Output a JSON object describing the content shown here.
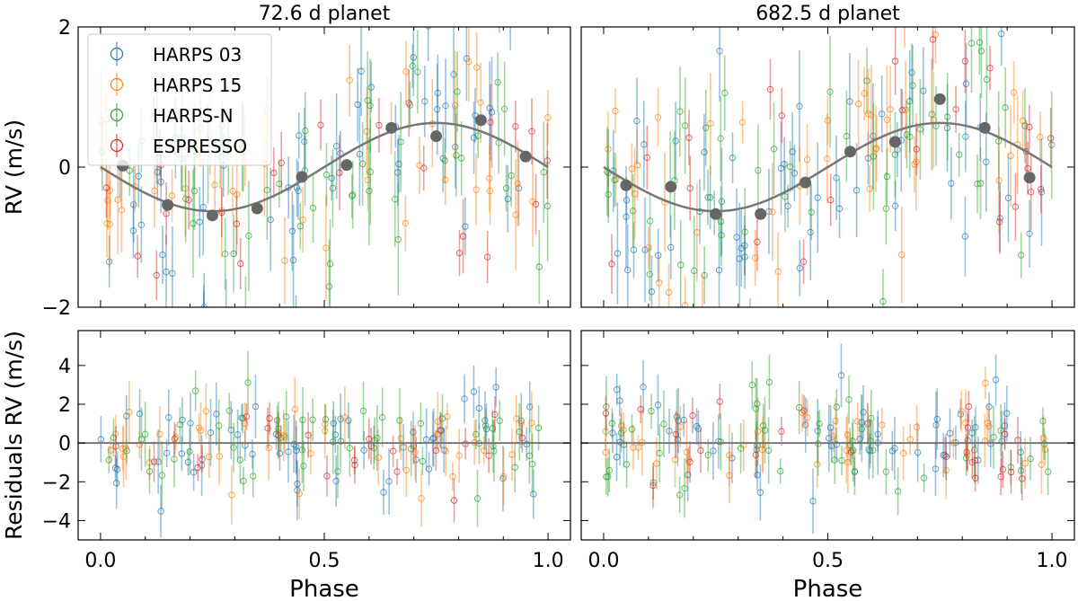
{
  "colors": {
    "HARPS 03": "#1f77b4",
    "HARPS 15": "#ff7f0e",
    "HARPS-N": "#2ca02c",
    "ESPRESSO": "#d62728",
    "binned": "#666666",
    "model": "#777777"
  },
  "legend": {
    "position": "top-left",
    "entries": [
      "HARPS 03",
      "HARPS 15",
      "HARPS-N",
      "ESPRESSO"
    ]
  },
  "chart_data": [
    {
      "type": "scatter",
      "title": "72.6 d planet",
      "xlabel": "",
      "ylabel": "RV (m/s)",
      "xlim": [
        -0.05,
        1.05
      ],
      "ylim": [
        -2,
        2
      ],
      "yticks": [
        -2,
        0,
        2
      ],
      "xticks": [
        0.0,
        0.5,
        1.0
      ],
      "grid": false,
      "model": {
        "type": "sine",
        "amplitude": 0.63,
        "phase_min": 0.25
      },
      "binned": {
        "x": [
          0.05,
          0.15,
          0.25,
          0.35,
          0.45,
          0.55,
          0.65,
          0.75,
          0.85,
          0.95
        ],
        "y": [
          0.02,
          -0.54,
          -0.69,
          -0.59,
          -0.14,
          0.03,
          0.56,
          0.44,
          0.67,
          0.15
        ]
      }
    },
    {
      "type": "scatter",
      "title": "682.5 d planet",
      "xlabel": "",
      "ylabel": "",
      "xlim": [
        -0.05,
        1.05
      ],
      "ylim": [
        -2,
        2
      ],
      "yticks": [
        -2,
        0,
        2
      ],
      "xticks": [
        0.0,
        0.5,
        1.0
      ],
      "grid": false,
      "model": {
        "type": "sine",
        "amplitude": 0.63,
        "phase_min": 0.25
      },
      "binned": {
        "x": [
          0.05,
          0.15,
          0.25,
          0.35,
          0.45,
          0.55,
          0.65,
          0.75,
          0.85,
          0.95
        ],
        "y": [
          -0.26,
          -0.28,
          -0.67,
          -0.67,
          -0.22,
          0.22,
          0.36,
          0.97,
          0.56,
          -0.15
        ]
      }
    },
    {
      "type": "scatter",
      "title": "",
      "xlabel": "Phase",
      "ylabel": "Residuals RV (m/s)",
      "xlim": [
        -0.05,
        1.05
      ],
      "ylim": [
        -5,
        5.8
      ],
      "yticks": [
        -4,
        -2,
        0,
        2,
        4
      ],
      "xticks": [
        0.0,
        0.5,
        1.0
      ],
      "xtick_labels": [
        "0.0",
        "0.5",
        "1.0"
      ],
      "grid": false,
      "reference_line": 0
    },
    {
      "type": "scatter",
      "title": "",
      "xlabel": "Phase",
      "ylabel": "",
      "xlim": [
        -0.05,
        1.05
      ],
      "ylim": [
        -5,
        5.8
      ],
      "yticks": [
        -4,
        -2,
        0,
        2,
        4
      ],
      "xticks": [
        0.0,
        0.5,
        1.0
      ],
      "xtick_labels": [
        "0.0",
        "0.5",
        "1.0"
      ],
      "grid": false,
      "reference_line": 0
    }
  ]
}
